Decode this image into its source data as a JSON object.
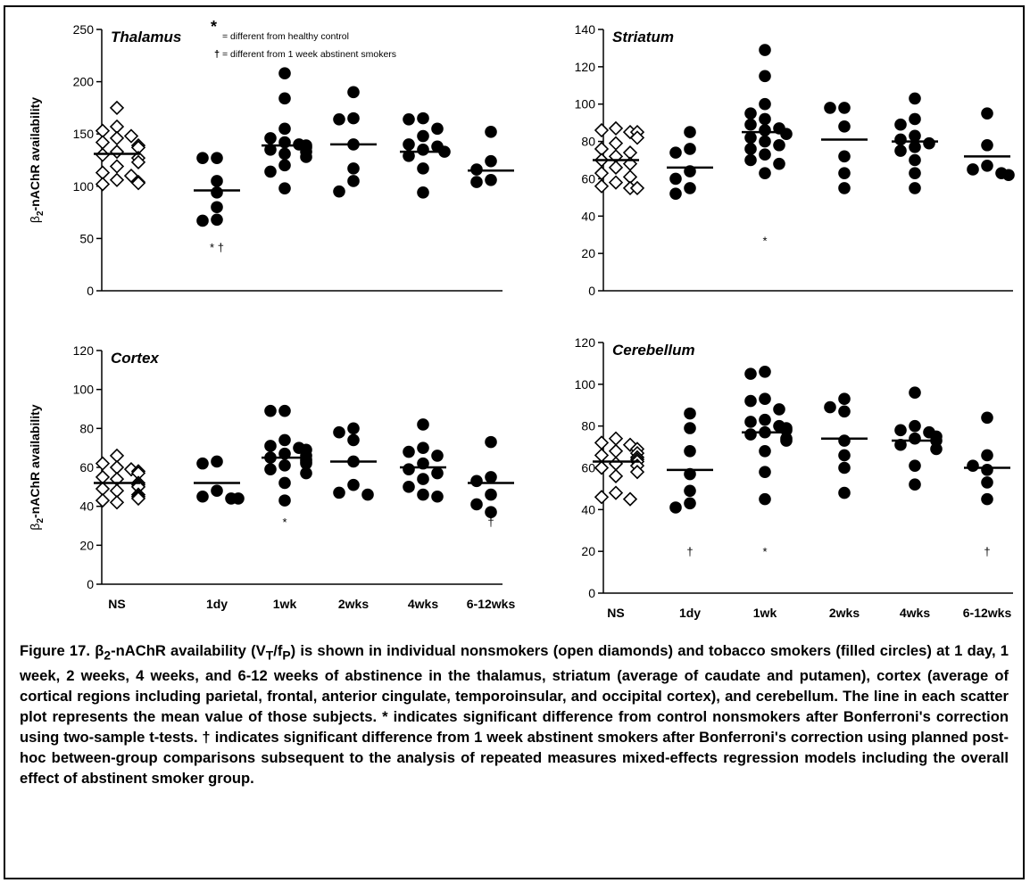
{
  "y_axis_label": {
    "beta": "β",
    "sub": "2",
    "rest": "-nAChR availability"
  },
  "legend_notes": [
    {
      "symbol": "*",
      "text": "= different from healthy control"
    },
    {
      "symbol": "†",
      "text": "= different from 1 week abstinent smokers"
    }
  ],
  "caption": {
    "prefix": "Figure 17. β",
    "sub1": "2",
    "part2": "-nAChR availability (V",
    "sub2": "T",
    "part3": "/f",
    "sub3": "P",
    "rest": ") is shown in individual nonsmokers (open diamonds) and tobacco smokers (filled circles) at 1 day, 1 week, 2 weeks, 4 weeks, and 6-12 weeks of abstinence in the thalamus, striatum (average of caudate and putamen), cortex (average of cortical regions including parietal, frontal, anterior cingulate, temporoinsular, and occipital cortex), and cerebellum. The line in each scatter plot represents the mean value of those subjects. * indicates significant difference from control nonsmokers after Bonferroni's correction using two-sample t-tests. † indicates significant difference from 1 week abstinent smokers after Bonferroni's correction using planned post-hoc between-group comparisons subsequent to the analysis of repeated measures mixed-effects regression models including the overall effect of abstinent smoker group."
  },
  "chart_data": [
    {
      "type": "scatter",
      "title": "Thalamus",
      "categories": [
        "NS",
        "1dy",
        "1wk",
        "2wks",
        "4wks",
        "6-12wks"
      ],
      "ylim": [
        0,
        250
      ],
      "yticks": [
        0,
        50,
        100,
        150,
        200,
        250
      ],
      "ylabel": "β2-nAChR availability",
      "show_xticklabels": false,
      "markers": [
        "open-diamond",
        "filled-circle",
        "filled-circle",
        "filled-circle",
        "filled-circle",
        "filled-circle"
      ],
      "points": [
        [
          175,
          157,
          153,
          148,
          146,
          142,
          139,
          137,
          133,
          130,
          127,
          123,
          119,
          113,
          110,
          106,
          104,
          103,
          102
        ],
        [
          127,
          127,
          105,
          94,
          80,
          68,
          67
        ],
        [
          208,
          184,
          155,
          146,
          142,
          140,
          139,
          137,
          135,
          133,
          131,
          128,
          120,
          114,
          98
        ],
        [
          190,
          165,
          164,
          140,
          117,
          105,
          95
        ],
        [
          165,
          164,
          155,
          148,
          140,
          138,
          135,
          133,
          129,
          117,
          94
        ],
        [
          152,
          124,
          116,
          106,
          104
        ]
      ],
      "means": [
        131,
        96,
        139,
        140,
        133,
        115
      ],
      "annotations": [
        {
          "category": "1dy",
          "y": 42,
          "text": "*  †"
        }
      ]
    },
    {
      "type": "scatter",
      "title": "Striatum",
      "categories": [
        "NS",
        "1dy",
        "1wk",
        "2wks",
        "4wks",
        "6-12wks"
      ],
      "ylim": [
        0,
        140
      ],
      "yticks": [
        0,
        20,
        40,
        60,
        80,
        100,
        120,
        140
      ],
      "ylabel": "",
      "show_xticklabels": false,
      "markers": [
        "open-diamond",
        "filled-circle",
        "filled-circle",
        "filled-circle",
        "filled-circle",
        "filled-circle"
      ],
      "points": [
        [
          87,
          86,
          85,
          85,
          82,
          79,
          76,
          74,
          72,
          70,
          68,
          66,
          63,
          61,
          58,
          56,
          55,
          55
        ],
        [
          85,
          76,
          74,
          64,
          60,
          55,
          52
        ],
        [
          129,
          115,
          100,
          95,
          92,
          89,
          87,
          86,
          84,
          82,
          80,
          78,
          76,
          73,
          70,
          68,
          63
        ],
        [
          98,
          98,
          88,
          72,
          63,
          55
        ],
        [
          103,
          92,
          89,
          83,
          81,
          79,
          77,
          75,
          70,
          63,
          55
        ],
        [
          95,
          78,
          67,
          65,
          63,
          62
        ]
      ],
      "means": [
        70,
        66,
        85,
        81,
        80,
        72
      ],
      "annotations": [
        {
          "category": "1wk",
          "y": 27,
          "text": "*"
        }
      ]
    },
    {
      "type": "scatter",
      "title": "Cortex",
      "categories": [
        "NS",
        "1dy",
        "1wk",
        "2wks",
        "4wks",
        "6-12wks"
      ],
      "ylim": [
        0,
        120
      ],
      "yticks": [
        0,
        20,
        40,
        60,
        80,
        100,
        120
      ],
      "ylabel": "β2-nAChR availability",
      "show_xticklabels": true,
      "markers": [
        "open-diamond",
        "filled-circle",
        "filled-circle",
        "filled-circle",
        "filled-circle",
        "filled-circle"
      ],
      "points": [
        [
          66,
          62,
          60,
          59,
          58,
          57,
          55,
          54,
          52,
          51,
          50,
          49,
          48,
          46,
          45,
          44,
          43,
          42
        ],
        [
          63,
          62,
          48,
          45,
          44,
          44
        ],
        [
          89,
          89,
          74,
          71,
          70,
          69,
          67,
          66,
          65,
          64,
          63,
          62,
          61,
          59,
          57,
          52,
          43
        ],
        [
          80,
          78,
          74,
          63,
          51,
          47,
          46
        ],
        [
          82,
          70,
          68,
          66,
          62,
          59,
          57,
          54,
          50,
          46,
          45
        ],
        [
          73,
          55,
          53,
          46,
          41,
          37
        ]
      ],
      "means": [
        52,
        52,
        65,
        63,
        60,
        52
      ],
      "annotations": [
        {
          "category": "1wk",
          "y": 32,
          "text": "*"
        },
        {
          "category": "6-12wks",
          "y": 32,
          "text": "†"
        }
      ]
    },
    {
      "type": "scatter",
      "title": "Cerebellum",
      "categories": [
        "NS",
        "1dy",
        "1wk",
        "2wks",
        "4wks",
        "6-12wks"
      ],
      "ylim": [
        0,
        120
      ],
      "yticks": [
        0,
        20,
        40,
        60,
        80,
        100,
        120
      ],
      "ylabel": "",
      "show_xticklabels": true,
      "markers": [
        "open-diamond",
        "filled-circle",
        "filled-circle",
        "filled-circle",
        "filled-circle",
        "filled-circle"
      ],
      "points": [
        [
          74,
          72,
          71,
          69,
          68,
          67,
          66,
          65,
          64,
          63,
          62,
          61,
          60,
          58,
          56,
          48,
          46,
          45
        ],
        [
          86,
          79,
          68,
          57,
          49,
          43,
          41
        ],
        [
          106,
          105,
          93,
          92,
          88,
          83,
          82,
          80,
          79,
          78,
          77,
          76,
          74,
          73,
          68,
          58,
          45
        ],
        [
          93,
          89,
          87,
          73,
          66,
          60,
          48
        ],
        [
          96,
          80,
          78,
          77,
          75,
          74,
          73,
          71,
          69,
          61,
          52
        ],
        [
          84,
          66,
          61,
          59,
          53,
          45
        ]
      ],
      "means": [
        63,
        59,
        77,
        74,
        73,
        60
      ],
      "annotations": [
        {
          "category": "1dy",
          "y": 20,
          "text": "†"
        },
        {
          "category": "1wk",
          "y": 20,
          "text": "*"
        },
        {
          "category": "6-12wks",
          "y": 20,
          "text": "†"
        }
      ]
    }
  ]
}
